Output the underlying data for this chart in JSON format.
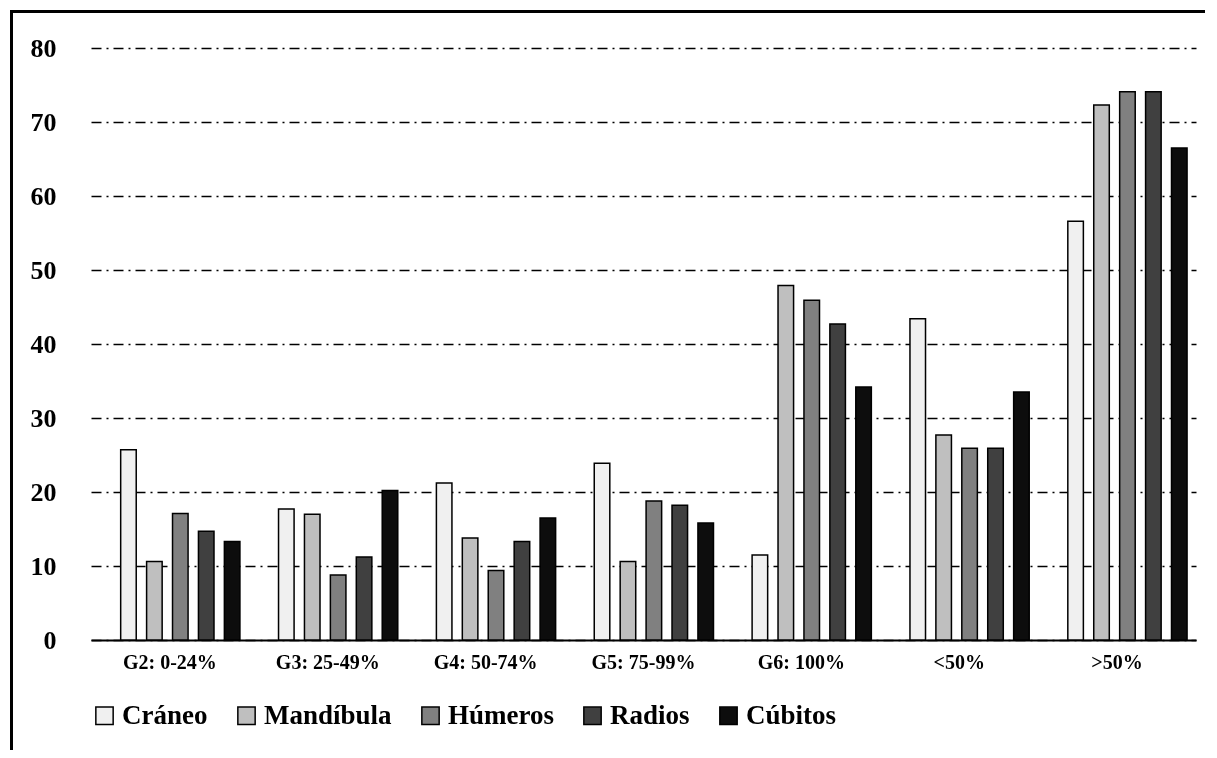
{
  "chart_data": {
    "type": "bar",
    "categories": [
      "G2: 0-24%",
      "G3: 25-49%",
      "G4: 50-74%",
      "G5: 75-99%",
      "G6: 100%",
      "<50%",
      ">50%"
    ],
    "series": [
      {
        "name": "Cráneo",
        "color": "#f0f0f0",
        "values": [
          25.7,
          17.7,
          21.2,
          23.9,
          11.5,
          43.4,
          56.6
        ]
      },
      {
        "name": "Mandíbula",
        "color": "#bfbfbf",
        "values": [
          10.6,
          17.0,
          13.8,
          10.6,
          47.9,
          27.7,
          72.3
        ]
      },
      {
        "name": "Húmeros",
        "color": "#808080",
        "values": [
          17.1,
          8.8,
          9.4,
          18.8,
          45.9,
          25.9,
          74.1
        ]
      },
      {
        "name": "Radios",
        "color": "#404040",
        "values": [
          14.7,
          11.2,
          13.3,
          18.2,
          42.7,
          25.9,
          74.1
        ]
      },
      {
        "name": "Cúbitos",
        "color": "#0d0d0d",
        "values": [
          13.3,
          20.2,
          16.5,
          15.8,
          34.2,
          33.5,
          66.5
        ]
      }
    ],
    "ylim": [
      0,
      80
    ],
    "yticks": [
      0,
      10,
      20,
      30,
      40,
      50,
      60,
      70,
      80
    ],
    "grid": "y",
    "legend": "bottom"
  }
}
